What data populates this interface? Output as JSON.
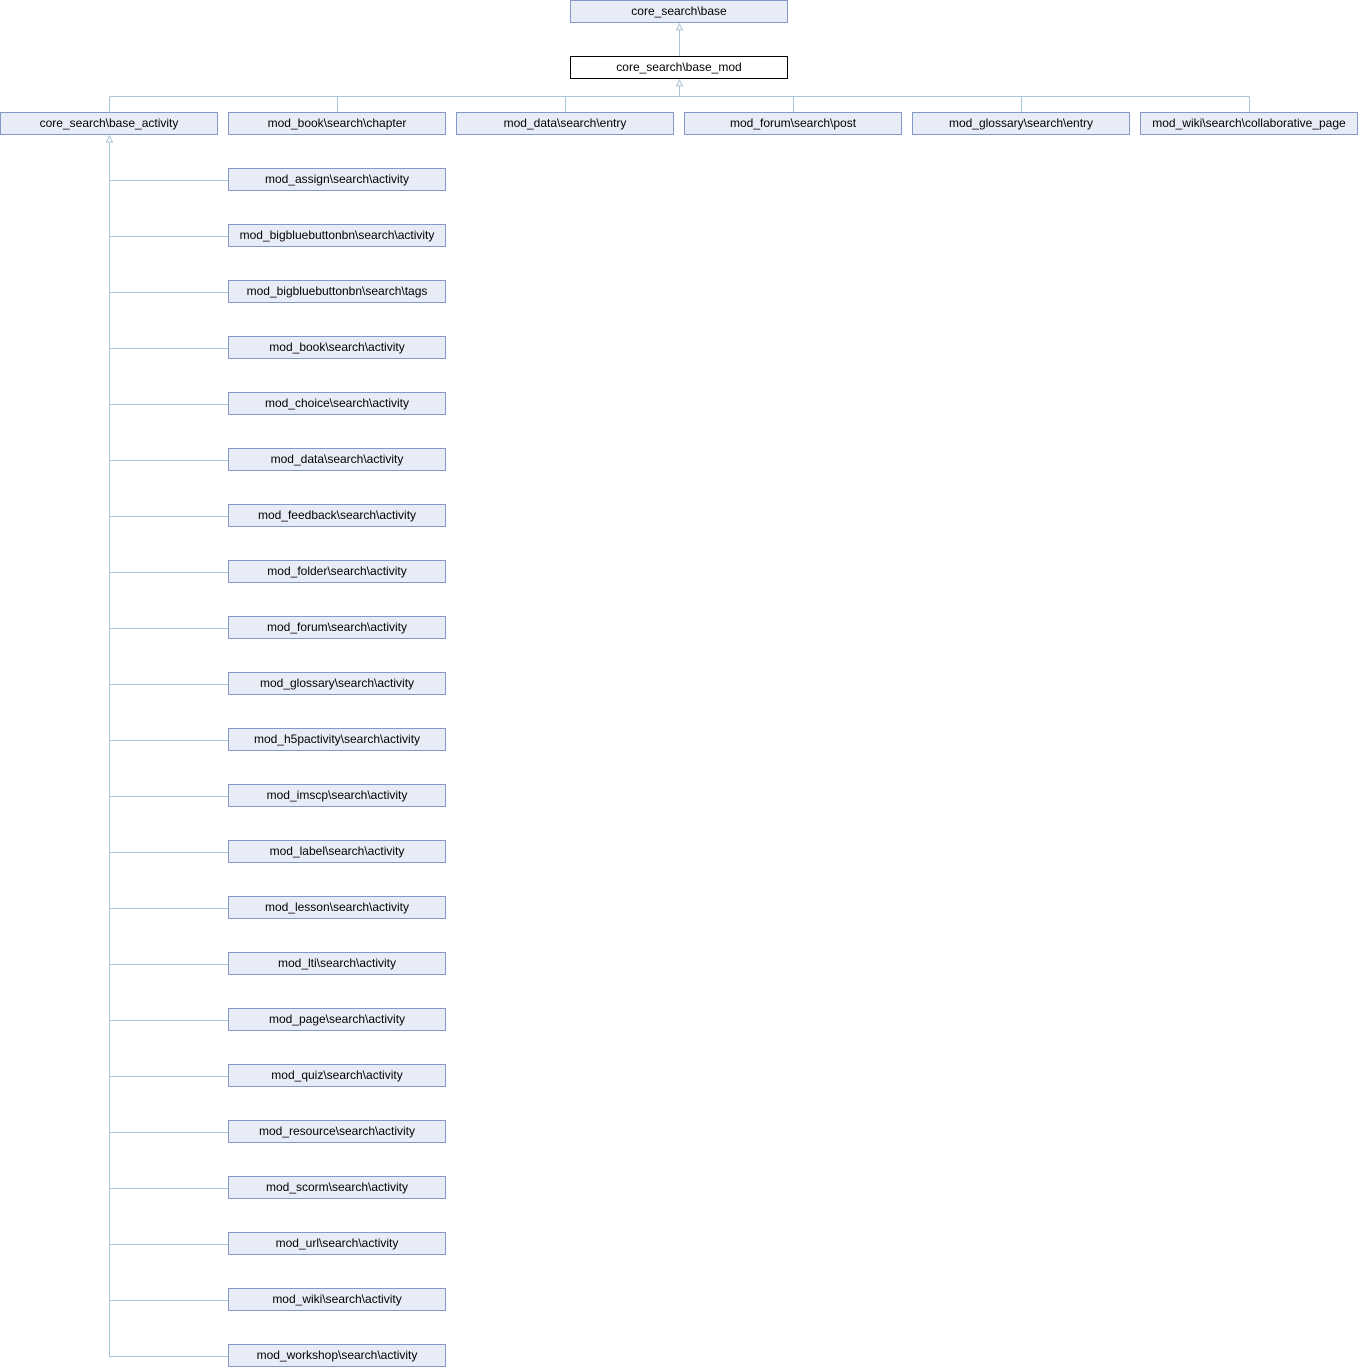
{
  "diagram": {
    "root": {
      "label": "core_search\\base"
    },
    "focus": {
      "label": "core_search\\base_mod"
    },
    "level2": [
      {
        "label": "core_search\\base_activity"
      },
      {
        "label": "mod_book\\search\\chapter"
      },
      {
        "label": "mod_data\\search\\entry"
      },
      {
        "label": "mod_forum\\search\\post"
      },
      {
        "label": "mod_glossary\\search\\entry"
      },
      {
        "label": "mod_wiki\\search\\collaborative_page"
      }
    ],
    "activities": [
      {
        "label": "mod_assign\\search\\activity"
      },
      {
        "label": "mod_bigbluebuttonbn\\search\\activity"
      },
      {
        "label": "mod_bigbluebuttonbn\\search\\tags"
      },
      {
        "label": "mod_book\\search\\activity"
      },
      {
        "label": "mod_choice\\search\\activity"
      },
      {
        "label": "mod_data\\search\\activity"
      },
      {
        "label": "mod_feedback\\search\\activity"
      },
      {
        "label": "mod_folder\\search\\activity"
      },
      {
        "label": "mod_forum\\search\\activity"
      },
      {
        "label": "mod_glossary\\search\\activity"
      },
      {
        "label": "mod_h5pactivity\\search\\activity"
      },
      {
        "label": "mod_imscp\\search\\activity"
      },
      {
        "label": "mod_label\\search\\activity"
      },
      {
        "label": "mod_lesson\\search\\activity"
      },
      {
        "label": "mod_lti\\search\\activity"
      },
      {
        "label": "mod_page\\search\\activity"
      },
      {
        "label": "mod_quiz\\search\\activity"
      },
      {
        "label": "mod_resource\\search\\activity"
      },
      {
        "label": "mod_scorm\\search\\activity"
      },
      {
        "label": "mod_url\\search\\activity"
      },
      {
        "label": "mod_wiki\\search\\activity"
      },
      {
        "label": "mod_workshop\\search\\activity"
      }
    ],
    "colors": {
      "edge": "#a8c6dc",
      "node_fill": "#e8ecf7",
      "node_border": "#8698c9",
      "focus_border": "#000000"
    }
  }
}
